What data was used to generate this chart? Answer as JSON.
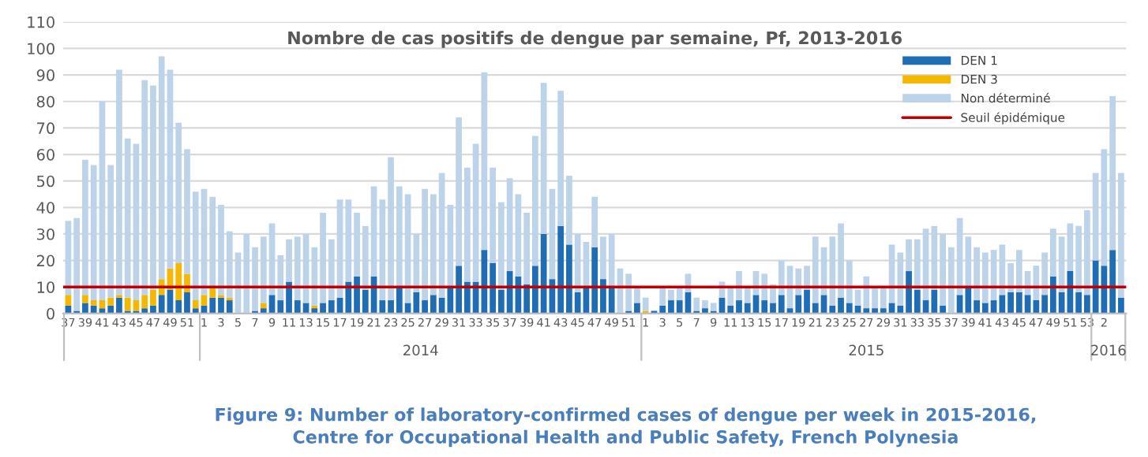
{
  "chart_data": {
    "type": "bar",
    "title": "Nombre de cas positifs de dengue par semaine, Pf, 2013-2016",
    "stacked": true,
    "categories": [
      "37",
      null,
      "39",
      null,
      "41",
      null,
      "43",
      null,
      "45",
      null,
      "47",
      null,
      "49",
      null,
      "51",
      null,
      "1",
      null,
      "3",
      null,
      "5",
      null,
      "7",
      null,
      "9",
      null,
      "11",
      null,
      "13",
      null,
      "15",
      null,
      "17",
      null,
      "19",
      null,
      "21",
      null,
      "23",
      null,
      "25",
      null,
      "27",
      null,
      "29",
      null,
      "31",
      null,
      "33",
      null,
      "35",
      null,
      "37",
      null,
      "39",
      null,
      "41",
      null,
      "43",
      null,
      "45",
      null,
      "47",
      null,
      "49",
      null,
      "51",
      null,
      "1",
      null,
      "3",
      null,
      "5",
      null,
      "7",
      null,
      "9",
      null,
      "11",
      null,
      "13",
      null,
      "15",
      null,
      "17",
      null,
      "19",
      null,
      "21",
      null,
      "23",
      null,
      "25",
      null,
      "27",
      null,
      "29",
      null,
      "31",
      null,
      "33",
      null,
      "35",
      null,
      "37",
      null,
      "39",
      null,
      "41",
      null,
      "43",
      null,
      "45",
      null,
      "47",
      null,
      "49",
      null,
      "51",
      null,
      "53",
      null,
      "2",
      null,
      null
    ],
    "series": [
      {
        "name": "DEN 1",
        "color": "#1f6db5",
        "values": [
          3,
          1,
          4,
          3,
          2,
          3,
          6,
          1,
          1,
          2,
          3,
          7,
          9,
          5,
          8,
          2,
          3,
          6,
          6,
          5,
          0,
          0,
          1,
          2,
          7,
          5,
          12,
          5,
          4,
          2,
          4,
          5,
          6,
          12,
          14,
          9,
          14,
          5,
          5,
          10,
          4,
          8,
          5,
          7,
          6,
          10,
          18,
          12,
          12,
          24,
          19,
          9,
          16,
          14,
          11,
          18,
          30,
          13,
          33,
          26,
          8,
          10,
          25,
          13,
          10,
          0,
          1,
          4,
          0,
          1,
          3,
          5,
          5,
          8,
          1,
          2,
          1,
          6,
          3,
          5,
          4,
          7,
          5,
          4,
          7,
          2,
          7,
          9,
          4,
          7,
          3,
          6,
          4,
          3,
          2,
          2,
          2,
          4,
          3,
          16,
          9,
          5,
          9,
          3,
          0,
          7,
          10,
          5,
          4,
          5,
          7,
          8,
          8,
          7,
          5,
          7,
          14,
          8,
          16,
          8,
          7,
          20,
          18,
          24,
          6
        ]
      },
      {
        "name": "DEN 3",
        "color": "#f5b800",
        "values": [
          4,
          0,
          3,
          2,
          3,
          3,
          1,
          5,
          4,
          5,
          6,
          6,
          8,
          14,
          7,
          3,
          4,
          4,
          1,
          1,
          0,
          0,
          0,
          2,
          0,
          0,
          0,
          0,
          0,
          1,
          0,
          0,
          0,
          0,
          0,
          0,
          0,
          0,
          0,
          0,
          0,
          0,
          0,
          0,
          0,
          0,
          0,
          0,
          0,
          0,
          0,
          0,
          0,
          0,
          0,
          0,
          0,
          0,
          0,
          0,
          0,
          0,
          0,
          0,
          0,
          0,
          0,
          0,
          1,
          0,
          0,
          0,
          0,
          0,
          0,
          0,
          0,
          0,
          0,
          0,
          0,
          0,
          0,
          0,
          0,
          0,
          0,
          0,
          0,
          0,
          0,
          0,
          0,
          0,
          0,
          0,
          0,
          0,
          0,
          0,
          0,
          0,
          0,
          0,
          0,
          0,
          0,
          0,
          0,
          0,
          0,
          0,
          0,
          0,
          0,
          0,
          0,
          0,
          0,
          0,
          0,
          0,
          0,
          0,
          0
        ]
      },
      {
        "name": "Non déterminé",
        "color": "#bdd3ea",
        "values": [
          28,
          35,
          51,
          51,
          75,
          50,
          85,
          60,
          59,
          81,
          77,
          84,
          75,
          53,
          47,
          41,
          40,
          34,
          34,
          25,
          23,
          30,
          24,
          25,
          27,
          17,
          16,
          24,
          26,
          22,
          34,
          23,
          37,
          31,
          24,
          24,
          34,
          38,
          54,
          38,
          41,
          22,
          42,
          38,
          47,
          31,
          56,
          43,
          52,
          67,
          36,
          33,
          35,
          31,
          27,
          49,
          57,
          34,
          51,
          26,
          22,
          17,
          19,
          16,
          20,
          17,
          14,
          6,
          5,
          0,
          7,
          4,
          5,
          7,
          5,
          3,
          3,
          6,
          7,
          11,
          6,
          9,
          10,
          7,
          13,
          16,
          10,
          9,
          25,
          18,
          26,
          28,
          16,
          6,
          12,
          8,
          8,
          22,
          20,
          12,
          19,
          27,
          24,
          27,
          25,
          29,
          19,
          20,
          19,
          19,
          19,
          11,
          16,
          9,
          13,
          16,
          18,
          21,
          18,
          25,
          32,
          33,
          44,
          58,
          47
        ]
      }
    ],
    "ref_lines": [
      {
        "axis": "y",
        "value": 10,
        "label": "Seuil épidémique",
        "color": "#c00000",
        "line_style": "solid"
      }
    ],
    "ylim": [
      0,
      110
    ],
    "yticks": [
      0,
      10,
      20,
      30,
      40,
      50,
      60,
      70,
      80,
      90,
      100,
      110
    ],
    "grid": "y",
    "legend": "top right",
    "annotations": [
      "2014",
      "2015",
      "2016",
      "Figure 9: Number of laboratory-confirmed cases of dengue per week in 2015-2016,\nCentre for Occupational Health and Public Safety, French Polynesia"
    ]
  }
}
